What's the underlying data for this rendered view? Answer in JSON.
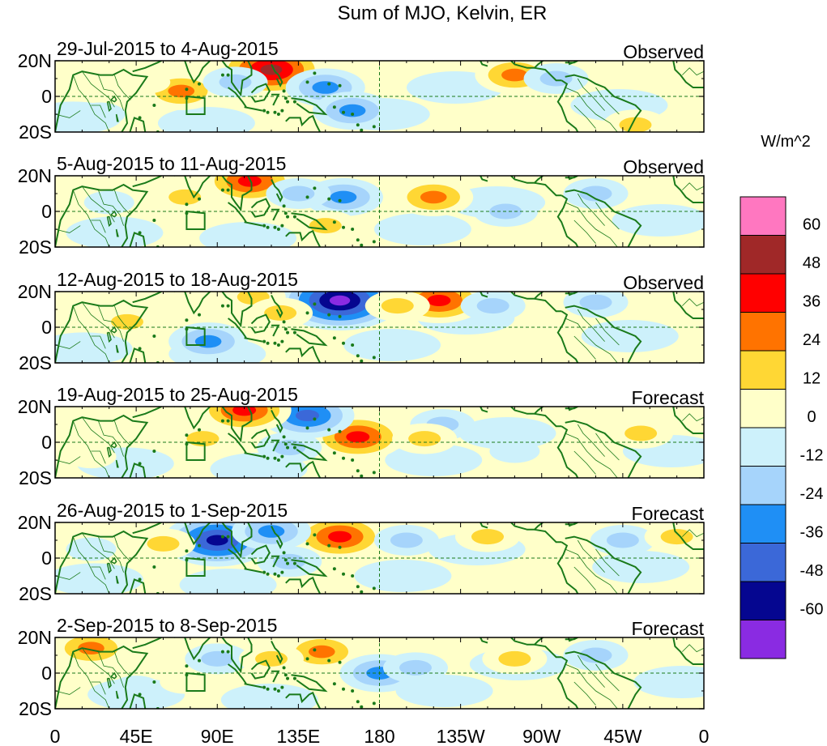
{
  "chart_data": {
    "type": "heatmap",
    "title": "Sum of MJO, Kelvin, ER",
    "units": "W/m^2",
    "colorbar": {
      "levels": [
        -60,
        -48,
        -36,
        -24,
        -12,
        0,
        12,
        24,
        36,
        48,
        60
      ],
      "labels": [
        "60",
        "48",
        "36",
        "24",
        "12",
        "0",
        "-12",
        "-24",
        "-36",
        "-48",
        "-60"
      ],
      "colors": [
        "#ff77c0",
        "#a02828",
        "#ff0000",
        "#ff7300",
        "#ffd734",
        "#ffffc9",
        "#cdf1fb",
        "#a6d4fb",
        "#1f8ff5",
        "#3b68d8",
        "#050690",
        "#8a2be2"
      ]
    },
    "x_ticks": [
      "0",
      "45E",
      "90E",
      "135E",
      "180",
      "135W",
      "90W",
      "45W",
      "0"
    ],
    "y_ticks": [
      "20N",
      "0",
      "20S"
    ],
    "xlim": [
      0,
      360
    ],
    "ylim": [
      -20,
      20
    ],
    "panels": [
      {
        "period": "29-Jul-2015 to 4-Aug-2015",
        "status": "Observed",
        "blobs": [
          {
            "lon": 120,
            "lat": 15,
            "value": 55
          },
          {
            "lon": 150,
            "lat": 5,
            "value": -35
          },
          {
            "lon": 165,
            "lat": -8,
            "value": -25
          },
          {
            "lon": 70,
            "lat": 3,
            "value": 28
          },
          {
            "lon": 100,
            "lat": 8,
            "value": -15
          },
          {
            "lon": 255,
            "lat": 12,
            "value": 30
          },
          {
            "lon": 278,
            "lat": 10,
            "value": -15
          },
          {
            "lon": 322,
            "lat": -16,
            "value": 20
          },
          {
            "lon": 50,
            "lat": 8,
            "value": 12
          },
          {
            "lon": 25,
            "lat": -10,
            "value": -10
          }
        ]
      },
      {
        "period": "5-Aug-2015 to 11-Aug-2015",
        "status": "Observed",
        "blobs": [
          {
            "lon": 108,
            "lat": 17,
            "value": 40
          },
          {
            "lon": 160,
            "lat": 8,
            "value": -30
          },
          {
            "lon": 135,
            "lat": 10,
            "value": -18
          },
          {
            "lon": 210,
            "lat": 8,
            "value": 30
          },
          {
            "lon": 72,
            "lat": 8,
            "value": 14
          },
          {
            "lon": 150,
            "lat": -8,
            "value": 14
          },
          {
            "lon": 250,
            "lat": 0,
            "value": -14
          },
          {
            "lon": 300,
            "lat": 10,
            "value": -14
          },
          {
            "lon": 30,
            "lat": 5,
            "value": -12
          }
        ]
      },
      {
        "period": "12-Aug-2015 to 18-Aug-2015",
        "status": "Observed",
        "blobs": [
          {
            "lon": 158,
            "lat": 15,
            "value": -70
          },
          {
            "lon": 213,
            "lat": 15,
            "value": 45
          },
          {
            "lon": 110,
            "lat": 17,
            "value": 24
          },
          {
            "lon": 85,
            "lat": -8,
            "value": -28
          },
          {
            "lon": 243,
            "lat": 12,
            "value": -22
          },
          {
            "lon": 300,
            "lat": 14,
            "value": -22
          },
          {
            "lon": 190,
            "lat": 12,
            "value": 14
          },
          {
            "lon": 125,
            "lat": 8,
            "value": 14
          },
          {
            "lon": 40,
            "lat": 3,
            "value": 14
          }
        ]
      },
      {
        "period": "19-Aug-2015 to 25-Aug-2015",
        "status": "Forecast",
        "blobs": [
          {
            "lon": 168,
            "lat": 3,
            "value": 42
          },
          {
            "lon": 140,
            "lat": 15,
            "value": -40
          },
          {
            "lon": 105,
            "lat": 18,
            "value": 38
          },
          {
            "lon": 130,
            "lat": -3,
            "value": -22
          },
          {
            "lon": 215,
            "lat": 10,
            "value": -18
          },
          {
            "lon": 205,
            "lat": 2,
            "value": 14
          },
          {
            "lon": 82,
            "lat": 2,
            "value": 14
          },
          {
            "lon": 325,
            "lat": 5,
            "value": 14
          },
          {
            "lon": 20,
            "lat": -8,
            "value": 10
          },
          {
            "lon": 255,
            "lat": -5,
            "value": -10
          }
        ]
      },
      {
        "period": "26-Aug-2015 to 1-Sep-2015",
        "status": "Forecast",
        "blobs": [
          {
            "lon": 90,
            "lat": 10,
            "value": -55
          },
          {
            "lon": 158,
            "lat": 12,
            "value": 42
          },
          {
            "lon": 120,
            "lat": 15,
            "value": -35
          },
          {
            "lon": 60,
            "lat": 8,
            "value": 22
          },
          {
            "lon": 130,
            "lat": -2,
            "value": -20
          },
          {
            "lon": 195,
            "lat": 10,
            "value": -14
          },
          {
            "lon": 240,
            "lat": 12,
            "value": 14
          },
          {
            "lon": 315,
            "lat": 10,
            "value": -14
          },
          {
            "lon": 345,
            "lat": 12,
            "value": 18
          },
          {
            "lon": 20,
            "lat": 5,
            "value": -10
          }
        ]
      },
      {
        "period": "2-Sep-2015 to 8-Sep-2015",
        "status": "Forecast",
        "blobs": [
          {
            "lon": 148,
            "lat": 12,
            "value": 32
          },
          {
            "lon": 180,
            "lat": 0,
            "value": -28
          },
          {
            "lon": 200,
            "lat": 3,
            "value": -18
          },
          {
            "lon": 20,
            "lat": 14,
            "value": 28
          },
          {
            "lon": 90,
            "lat": 8,
            "value": -24
          },
          {
            "lon": 120,
            "lat": 8,
            "value": 20
          },
          {
            "lon": 72,
            "lat": -5,
            "value": 12
          },
          {
            "lon": 300,
            "lat": 10,
            "value": -14
          },
          {
            "lon": 255,
            "lat": 8,
            "value": 14
          },
          {
            "lon": 45,
            "lat": -8,
            "value": -10
          }
        ]
      }
    ]
  }
}
